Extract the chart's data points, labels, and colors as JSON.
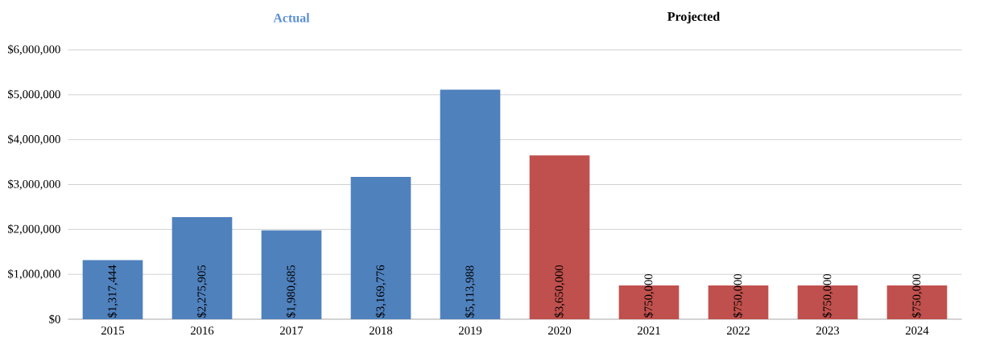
{
  "chart_data": {
    "type": "bar",
    "categories": [
      "2015",
      "2016",
      "2017",
      "2018",
      "2019",
      "2020",
      "2021",
      "2022",
      "2023",
      "2024"
    ],
    "values": [
      1317444,
      2275905,
      1980685,
      3169776,
      5113988,
      3650000,
      750000,
      750000,
      750000,
      750000
    ],
    "colors": [
      "#4f81bd",
      "#4f81bd",
      "#4f81bd",
      "#4f81bd",
      "#4f81bd",
      "#c0504d",
      "#c0504d",
      "#c0504d",
      "#c0504d",
      "#c0504d"
    ],
    "value_labels": [
      "$1,317,444",
      "$2,275,905",
      "$1,980,685",
      "$3,169,776",
      "$5,113,988",
      "$3,650,000",
      "$750,000",
      "$750,000",
      "$750,000",
      "$750,000"
    ],
    "annotations": [
      "Actual",
      "Projected"
    ],
    "ylim": [
      0,
      6000000
    ],
    "yticks": [
      {
        "value": 0,
        "label": "$0"
      },
      {
        "value": 1000000,
        "label": "$1,000,000"
      },
      {
        "value": 2000000,
        "label": "$2,000,000"
      },
      {
        "value": 3000000,
        "label": "$3,000,000"
      },
      {
        "value": 4000000,
        "label": "$4,000,000"
      },
      {
        "value": 5000000,
        "label": "$5,000,000"
      },
      {
        "value": 6000000,
        "label": "$6,000,000"
      }
    ],
    "grid": "y"
  }
}
